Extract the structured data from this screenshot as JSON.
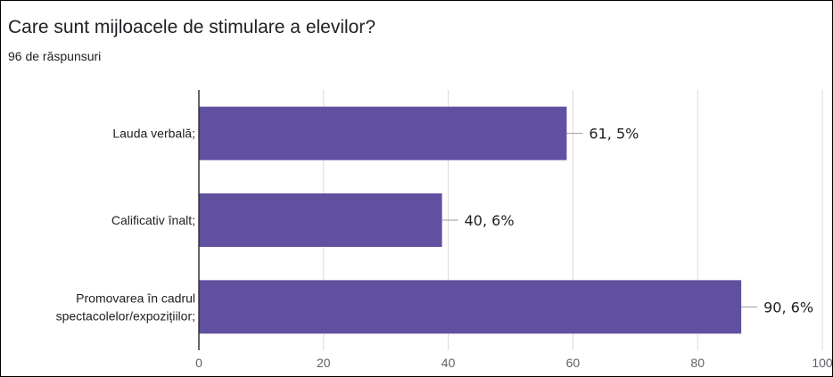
{
  "title": "Care sunt mijloacele de stimulare a elevilor?",
  "subtitle": "96 de răspunsuri",
  "colors": {
    "bar": "#6150a0",
    "grid": "#d9d9d9",
    "axis": "#333333",
    "leader": "#9e9e9e"
  },
  "chart_data": {
    "type": "bar",
    "orientation": "horizontal",
    "categories": [
      [
        "Lauda verbală;"
      ],
      [
        "Calificativ înalt;"
      ],
      [
        "Promovarea în cadrul",
        "spectacolelor/expozițiilor;"
      ]
    ],
    "values": [
      59,
      39,
      87
    ],
    "data_labels": [
      "61, 5%",
      "40, 6%",
      "90, 6%"
    ],
    "xlim": [
      0,
      100
    ],
    "xticks": [
      0,
      20,
      40,
      60,
      80,
      100
    ],
    "grid": true,
    "legend": "none"
  }
}
